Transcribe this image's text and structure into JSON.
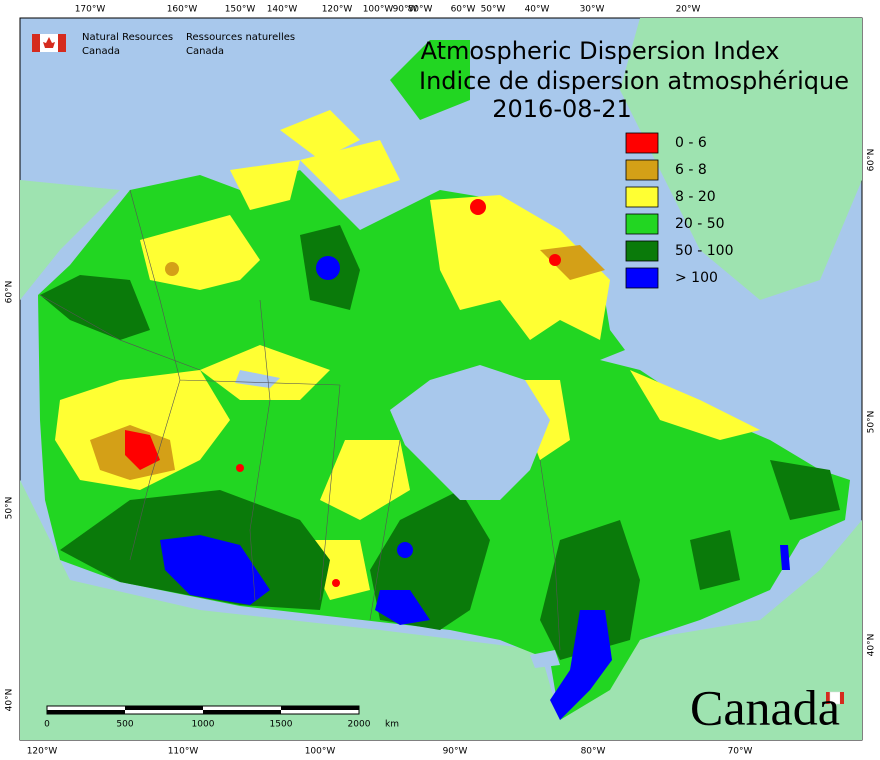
{
  "logo": {
    "en_line1": "Natural Resources",
    "en_line2": "Canada",
    "fr_line1": "Ressources naturelles",
    "fr_line2": "Canada"
  },
  "title": {
    "en": "Atmospheric Dispersion Index",
    "fr": "Indice de dispersion atmosphérique",
    "date": "2016-08-21"
  },
  "legend": [
    {
      "label": "0 - 6",
      "color": "#ff0000"
    },
    {
      "label": "6 - 8",
      "color": "#d4a017"
    },
    {
      "label": "8 - 20",
      "color": "#ffff33"
    },
    {
      "label": "20 - 50",
      "color": "#22d622"
    },
    {
      "label": "50 - 100",
      "color": "#0a7a0a"
    },
    {
      "label": "> 100",
      "color": "#0000ff"
    }
  ],
  "graticule": {
    "top": [
      "170°W",
      "160°W",
      "150°W",
      "140°W",
      "120°W",
      "100°W",
      "90°W",
      "80°W",
      "60°W",
      "50°W",
      "40°W",
      "30°W",
      "20°W"
    ],
    "bottom": [
      "120°W",
      "110°W",
      "100°W",
      "90°W",
      "80°W",
      "70°W"
    ],
    "left": [
      "60°N",
      "50°N",
      "40°N"
    ],
    "right": [
      "60°N",
      "50°N",
      "40°N"
    ]
  },
  "scale_bar": {
    "labels": [
      "0",
      "500",
      "1000",
      "1500",
      "2000"
    ],
    "unit": "km"
  },
  "wordmark": "Canada"
}
